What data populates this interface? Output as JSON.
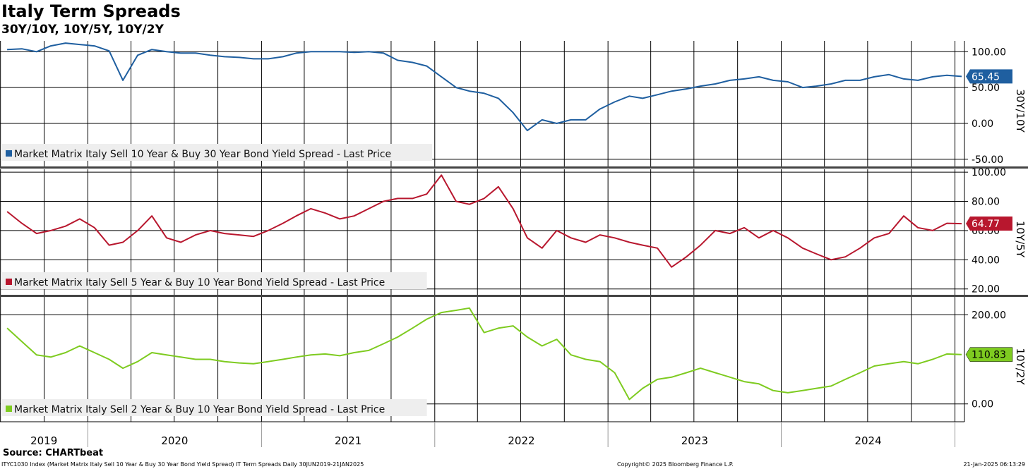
{
  "title": "Italy Term Spreads",
  "subtitle": "30Y/10Y, 10Y/5Y, 10Y/2Y",
  "source": "Source: CHARTbeat",
  "footer": {
    "left": "ITYC1030 Index (Market Matrix Italy Sell 10 Year & Buy 30 Year Bond Yield Spread) IT Term Spreads  Daily 30JUN2019-21JAN2025",
    "middle": "Copyright© 2025 Bloomberg Finance L.P.",
    "right": "21-Jan-2025 06:13:29"
  },
  "chart_data": [
    {
      "type": "line",
      "side_label": "30Y/10Y",
      "legend": "Market Matrix Italy Sell 10 Year & Buy 30 Year Bond Yield Spread - Last Price",
      "color": "#1f5fa0",
      "last_value": "65.45",
      "ylim": [
        -60,
        115
      ],
      "yticks": [
        "100.00",
        "50.00",
        "0.00",
        "-50.00"
      ],
      "ytick_values": [
        100,
        50,
        0,
        -50
      ],
      "series": [
        {
          "name": "Market Matrix Italy Sell 10 Year & Buy 30 Year Bond Yield Spread - Last Price",
          "x": [
            "2019-07",
            "2019-08",
            "2019-09",
            "2019-10",
            "2019-11",
            "2019-12",
            "2020-01",
            "2020-02",
            "2020-03",
            "2020-04",
            "2020-05",
            "2020-06",
            "2020-07",
            "2020-08",
            "2020-09",
            "2020-10",
            "2020-11",
            "2020-12",
            "2021-01",
            "2021-02",
            "2021-03",
            "2021-04",
            "2021-05",
            "2021-06",
            "2021-07",
            "2021-08",
            "2021-09",
            "2021-10",
            "2021-11",
            "2021-12",
            "2022-01",
            "2022-02",
            "2022-03",
            "2022-04",
            "2022-05",
            "2022-06",
            "2022-07",
            "2022-08",
            "2022-09",
            "2022-10",
            "2022-11",
            "2022-12",
            "2023-01",
            "2023-02",
            "2023-03",
            "2023-04",
            "2023-05",
            "2023-06",
            "2023-07",
            "2023-08",
            "2023-09",
            "2023-10",
            "2023-11",
            "2023-12",
            "2024-01",
            "2024-02",
            "2024-03",
            "2024-04",
            "2024-05",
            "2024-06",
            "2024-07",
            "2024-08",
            "2024-09",
            "2024-10",
            "2024-11",
            "2024-12",
            "2025-01"
          ],
          "values": [
            103,
            104,
            100,
            108,
            112,
            110,
            108,
            101,
            60,
            95,
            103,
            100,
            98,
            98,
            95,
            93,
            92,
            90,
            90,
            93,
            98,
            100,
            100,
            100,
            99,
            100,
            98,
            88,
            85,
            80,
            65,
            50,
            45,
            42,
            35,
            15,
            -10,
            5,
            0,
            5,
            5,
            20,
            30,
            38,
            35,
            40,
            45,
            48,
            52,
            55,
            60,
            62,
            65,
            60,
            58,
            50,
            52,
            55,
            60,
            60,
            65,
            68,
            62,
            60,
            65,
            67,
            65.45
          ]
        }
      ]
    },
    {
      "type": "line",
      "side_label": "10Y/5Y",
      "legend": "Market Matrix Italy Sell 5 Year & Buy 10 Year Bond Yield Spread - Last Price",
      "color": "#b8172e",
      "last_value": "64.77",
      "ylim": [
        16,
        102
      ],
      "yticks": [
        "100.00",
        "80.00",
        "60.00",
        "40.00",
        "20.00"
      ],
      "ytick_values": [
        100,
        80,
        60,
        40,
        20
      ],
      "series": [
        {
          "name": "Market Matrix Italy Sell 5 Year & Buy 10 Year Bond Yield Spread - Last Price",
          "x": [
            "2019-07",
            "2019-08",
            "2019-09",
            "2019-10",
            "2019-11",
            "2019-12",
            "2020-01",
            "2020-02",
            "2020-03",
            "2020-04",
            "2020-05",
            "2020-06",
            "2020-07",
            "2020-08",
            "2020-09",
            "2020-10",
            "2020-11",
            "2020-12",
            "2021-01",
            "2021-02",
            "2021-03",
            "2021-04",
            "2021-05",
            "2021-06",
            "2021-07",
            "2021-08",
            "2021-09",
            "2021-10",
            "2021-11",
            "2021-12",
            "2022-01",
            "2022-02",
            "2022-03",
            "2022-04",
            "2022-05",
            "2022-06",
            "2022-07",
            "2022-08",
            "2022-09",
            "2022-10",
            "2022-11",
            "2022-12",
            "2023-01",
            "2023-02",
            "2023-03",
            "2023-04",
            "2023-05",
            "2023-06",
            "2023-07",
            "2023-08",
            "2023-09",
            "2023-10",
            "2023-11",
            "2023-12",
            "2024-01",
            "2024-02",
            "2024-03",
            "2024-04",
            "2024-05",
            "2024-06",
            "2024-07",
            "2024-08",
            "2024-09",
            "2024-10",
            "2024-11",
            "2024-12",
            "2025-01"
          ],
          "values": [
            73,
            65,
            58,
            60,
            63,
            68,
            62,
            50,
            52,
            60,
            70,
            55,
            52,
            57,
            60,
            58,
            57,
            56,
            60,
            65,
            70,
            75,
            72,
            68,
            70,
            75,
            80,
            82,
            82,
            85,
            98,
            80,
            78,
            82,
            90,
            75,
            55,
            48,
            60,
            55,
            52,
            57,
            55,
            52,
            50,
            48,
            35,
            42,
            50,
            60,
            58,
            62,
            55,
            60,
            55,
            48,
            44,
            40,
            42,
            48,
            55,
            58,
            70,
            62,
            60,
            65,
            64.77
          ]
        }
      ]
    },
    {
      "type": "line",
      "side_label": "10Y/2Y",
      "legend": "Market Matrix Italy Sell 2 Year & Buy 10 Year Bond Yield Spread - Last Price",
      "color": "#7ecb20",
      "last_value": "110.83",
      "ylim": [
        -40,
        240
      ],
      "yticks": [
        "200.00",
        "0.00"
      ],
      "ytick_values": [
        200,
        0
      ],
      "series": [
        {
          "name": "Market Matrix Italy Sell 2 Year & Buy 10 Year Bond Yield Spread - Last Price",
          "x": [
            "2019-07",
            "2019-08",
            "2019-09",
            "2019-10",
            "2019-11",
            "2019-12",
            "2020-01",
            "2020-02",
            "2020-03",
            "2020-04",
            "2020-05",
            "2020-06",
            "2020-07",
            "2020-08",
            "2020-09",
            "2020-10",
            "2020-11",
            "2020-12",
            "2021-01",
            "2021-02",
            "2021-03",
            "2021-04",
            "2021-05",
            "2021-06",
            "2021-07",
            "2021-08",
            "2021-09",
            "2021-10",
            "2021-11",
            "2021-12",
            "2022-01",
            "2022-02",
            "2022-03",
            "2022-04",
            "2022-05",
            "2022-06",
            "2022-07",
            "2022-08",
            "2022-09",
            "2022-10",
            "2022-11",
            "2022-12",
            "2023-01",
            "2023-02",
            "2023-03",
            "2023-04",
            "2023-05",
            "2023-06",
            "2023-07",
            "2023-08",
            "2023-09",
            "2023-10",
            "2023-11",
            "2023-12",
            "2024-01",
            "2024-02",
            "2024-03",
            "2024-04",
            "2024-05",
            "2024-06",
            "2024-07",
            "2024-08",
            "2024-09",
            "2024-10",
            "2024-11",
            "2024-12",
            "2025-01"
          ],
          "values": [
            170,
            140,
            110,
            105,
            115,
            130,
            115,
            100,
            80,
            95,
            115,
            110,
            105,
            100,
            100,
            95,
            92,
            90,
            95,
            100,
            105,
            110,
            112,
            108,
            115,
            120,
            135,
            150,
            170,
            190,
            205,
            210,
            215,
            160,
            170,
            175,
            150,
            130,
            145,
            110,
            100,
            95,
            70,
            10,
            35,
            55,
            60,
            70,
            80,
            70,
            60,
            50,
            45,
            30,
            25,
            30,
            35,
            40,
            55,
            70,
            85,
            90,
            95,
            90,
            100,
            112,
            110.83
          ]
        }
      ]
    }
  ],
  "x_axis": {
    "year_labels": [
      "2019",
      "2020",
      "2021",
      "2022",
      "2023",
      "2024"
    ]
  }
}
